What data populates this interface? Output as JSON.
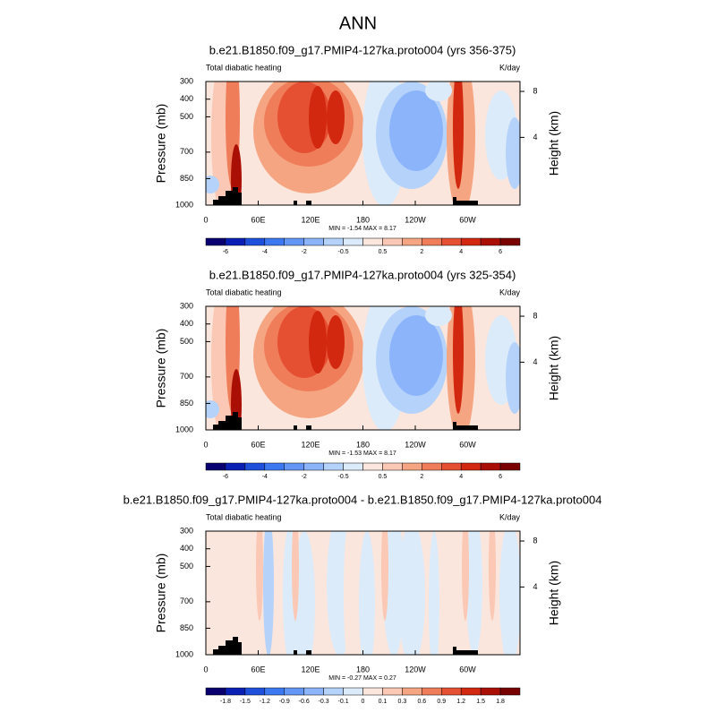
{
  "title": "ANN",
  "chart_data": [
    {
      "type": "contour",
      "title": "b.e21.B1850.f09_g17.PMIP4-127ka.proto004 (yrs 356-375)",
      "left_label": "Total diabatic heating",
      "right_label": "K/day",
      "ylabel": "Pressure (mb)",
      "y2label": "Height (km)",
      "xlim": [
        0,
        360
      ],
      "xticks": [
        0,
        {
          "value": 60,
          "label": "60E"
        },
        {
          "value": 120,
          "label": "120E"
        },
        180,
        {
          "value": 240,
          "label": "120W"
        },
        {
          "value": 300,
          "label": "60W"
        }
      ],
      "ylim": [
        1000,
        300
      ],
      "yticks": [
        300,
        400,
        500,
        700,
        850,
        1000
      ],
      "y2ticks": [
        8,
        4
      ],
      "stats": "MIN =  -1.54  MAX =  8.17",
      "colorbar": {
        "labels": [
          -6,
          -4,
          -2,
          -0.5,
          0.5,
          2,
          4,
          6
        ],
        "colors": [
          "#08006e",
          "#0a1fb4",
          "#1e50dc",
          "#3c78f0",
          "#6496f5",
          "#8cb4fa",
          "#b4d2fa",
          "#dcebfa",
          "#fae6dc",
          "#fac8b4",
          "#f5a582",
          "#f07d5a",
          "#e65032",
          "#d2280f",
          "#aa0f05",
          "#780000"
        ]
      }
    },
    {
      "type": "contour",
      "title": "b.e21.B1850.f09_g17.PMIP4-127ka.proto004 (yrs 325-354)",
      "left_label": "Total diabatic heating",
      "right_label": "K/day",
      "ylabel": "Pressure (mb)",
      "y2label": "Height (km)",
      "xlim": [
        0,
        360
      ],
      "xticks": [
        0,
        {
          "value": 60,
          "label": "60E"
        },
        {
          "value": 120,
          "label": "120E"
        },
        180,
        {
          "value": 240,
          "label": "120W"
        },
        {
          "value": 300,
          "label": "60W"
        }
      ],
      "ylim": [
        1000,
        300
      ],
      "yticks": [
        300,
        400,
        500,
        700,
        850,
        1000
      ],
      "y2ticks": [
        8,
        4
      ],
      "stats": "MIN =  -1.53  MAX =  8.17",
      "colorbar": {
        "labels": [
          -6,
          -4,
          -2,
          -0.5,
          0.5,
          2,
          4,
          6
        ],
        "colors": [
          "#08006e",
          "#0a1fb4",
          "#1e50dc",
          "#3c78f0",
          "#6496f5",
          "#8cb4fa",
          "#b4d2fa",
          "#dcebfa",
          "#fae6dc",
          "#fac8b4",
          "#f5a582",
          "#f07d5a",
          "#e65032",
          "#d2280f",
          "#aa0f05",
          "#780000"
        ]
      }
    },
    {
      "type": "contour",
      "title": "b.e21.B1850.f09_g17.PMIP4-127ka.proto004 - b.e21.B1850.f09_g17.PMIP4-127ka.proto004",
      "left_label": "Total diabatic heating",
      "right_label": "K/day",
      "ylabel": "Pressure (mb)",
      "y2label": "Height (km)",
      "xlim": [
        0,
        360
      ],
      "xticks": [
        0,
        {
          "value": 60,
          "label": "60E"
        },
        {
          "value": 120,
          "label": "120E"
        },
        180,
        {
          "value": 240,
          "label": "120W"
        },
        {
          "value": 300,
          "label": "60W"
        }
      ],
      "ylim": [
        1000,
        300
      ],
      "yticks": [
        300,
        400,
        500,
        700,
        850,
        1000
      ],
      "y2ticks": [
        8,
        4
      ],
      "stats": "MIN =  -0.27  MAX =  0.27",
      "colorbar": {
        "labels": [
          -1.8,
          -1.5,
          -1.2,
          -0.9,
          -0.6,
          -0.3,
          -0.1,
          0,
          0.1,
          0.3,
          0.6,
          0.9,
          1.2,
          1.5,
          1.8
        ],
        "colors": [
          "#08006e",
          "#0a1fb4",
          "#1e50dc",
          "#3c78f0",
          "#6496f5",
          "#8cb4fa",
          "#b4d2fa",
          "#dcebfa",
          "#fae6dc",
          "#fac8b4",
          "#f5a582",
          "#f07d5a",
          "#e65032",
          "#d2280f",
          "#aa0f05",
          "#780000"
        ]
      }
    }
  ]
}
